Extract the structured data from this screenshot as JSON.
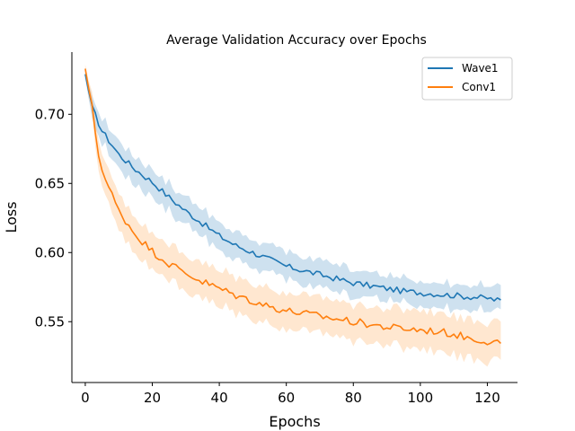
{
  "chart_data": {
    "type": "line",
    "title": "Average Validation Accuracy over Epochs",
    "xlabel": "Epochs",
    "ylabel": "Loss",
    "xlim": [
      -4,
      129
    ],
    "ylim": [
      0.506,
      0.745
    ],
    "xticks": [
      0,
      20,
      40,
      60,
      80,
      100,
      120
    ],
    "yticks": [
      0.55,
      0.6,
      0.65,
      0.7
    ],
    "ytick_labels": [
      "0.55",
      "0.60",
      "0.65",
      "0.70"
    ],
    "grid": false,
    "legend_position": "top-right",
    "series": [
      {
        "name": "Wave1",
        "color": "#1f77b4",
        "band_color": "#1f77b4",
        "x_keys": [
          0,
          2,
          5,
          10,
          15,
          20,
          25,
          30,
          35,
          40,
          45,
          50,
          55,
          60,
          65,
          70,
          75,
          80,
          85,
          90,
          95,
          100,
          105,
          110,
          115,
          120,
          124
        ],
        "y_keys": [
          0.729,
          0.705,
          0.688,
          0.671,
          0.66,
          0.651,
          0.64,
          0.63,
          0.621,
          0.612,
          0.605,
          0.6,
          0.595,
          0.59,
          0.587,
          0.584,
          0.581,
          0.578,
          0.576,
          0.574,
          0.572,
          0.571,
          0.57,
          0.569,
          0.568,
          0.567,
          0.565
        ],
        "band_halfwidth": [
          0.003,
          0.008,
          0.009,
          0.01,
          0.01,
          0.01,
          0.01,
          0.01,
          0.01,
          0.01,
          0.01,
          0.01,
          0.01,
          0.01,
          0.01,
          0.01,
          0.01,
          0.01,
          0.009,
          0.009,
          0.009,
          0.009,
          0.009,
          0.009,
          0.009,
          0.009,
          0.009
        ],
        "noise": 0.0022
      },
      {
        "name": "Conv1",
        "color": "#ff7f0e",
        "band_color": "#ffbb78",
        "x_keys": [
          0,
          2,
          4,
          6,
          10,
          15,
          20,
          25,
          30,
          35,
          40,
          45,
          50,
          55,
          60,
          65,
          70,
          75,
          80,
          85,
          90,
          95,
          100,
          105,
          110,
          115,
          120,
          124
        ],
        "y_keys": [
          0.733,
          0.705,
          0.67,
          0.653,
          0.63,
          0.613,
          0.601,
          0.592,
          0.585,
          0.579,
          0.574,
          0.569,
          0.565,
          0.561,
          0.558,
          0.556,
          0.554,
          0.552,
          0.55,
          0.548,
          0.546,
          0.545,
          0.544,
          0.543,
          0.541,
          0.538,
          0.536,
          0.535
        ],
        "band_halfwidth": [
          0.003,
          0.008,
          0.011,
          0.012,
          0.013,
          0.013,
          0.013,
          0.013,
          0.013,
          0.013,
          0.013,
          0.013,
          0.013,
          0.013,
          0.013,
          0.013,
          0.013,
          0.013,
          0.013,
          0.013,
          0.013,
          0.014,
          0.014,
          0.014,
          0.014,
          0.014,
          0.014,
          0.014
        ],
        "noise": 0.0028
      }
    ]
  }
}
